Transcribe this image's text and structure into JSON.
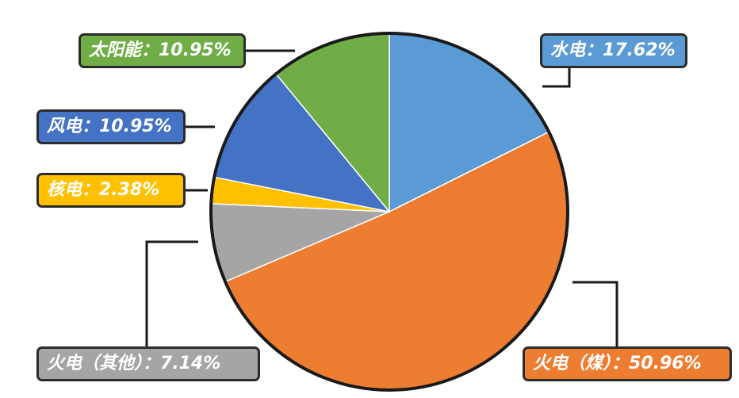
{
  "chart_data": {
    "type": "pie",
    "title": "",
    "slices": [
      {
        "key": "hydro",
        "label": "水电",
        "value": 17.62,
        "text": "水电：17.62%",
        "color": "#5B9BD5"
      },
      {
        "key": "thermal_coal",
        "label": "火电（煤）",
        "value": 50.96,
        "text": "火电（煤）：50.96%",
        "color": "#ED7D31"
      },
      {
        "key": "thermal_other",
        "label": "火电（其他）",
        "value": 7.14,
        "text": "火电（其他）：7.14%",
        "color": "#A5A5A5"
      },
      {
        "key": "nuclear",
        "label": "核电",
        "value": 2.38,
        "text": "核电：2.38%",
        "color": "#FFC000"
      },
      {
        "key": "wind",
        "label": "风电",
        "value": 10.95,
        "text": "风电：10.95%",
        "color": "#4472C4"
      },
      {
        "key": "solar",
        "label": "太阳能",
        "value": 10.95,
        "text": "太阳能：10.95%",
        "color": "#70AD47"
      }
    ],
    "start": "12 o'clock",
    "direction": "clockwise"
  }
}
